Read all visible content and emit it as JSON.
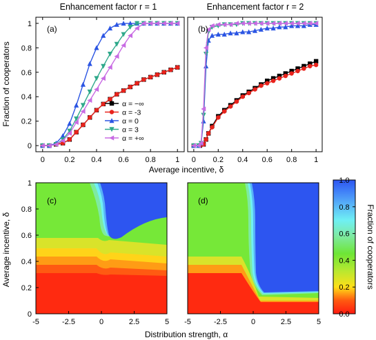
{
  "chart_data": [
    {
      "id": "a",
      "type": "line",
      "panel_label": "(a)",
      "title": "Enhancement factor r = 1",
      "xlabel": "Average incentive, δ",
      "ylabel": "Fraction of cooperators",
      "xlim": [
        -0.05,
        1.05
      ],
      "ylim": [
        -0.05,
        1.05
      ],
      "xticks": [
        "0",
        "0.2",
        "0.4",
        "0.6",
        "0.8",
        "1"
      ],
      "yticks": [
        "0",
        "0.2",
        "0.4",
        "0.6",
        "0.8",
        "1"
      ],
      "legend": {
        "position": "lower-right"
      },
      "series": [
        {
          "name": "α = −∞",
          "color": "#000000",
          "marker": "square",
          "x": [
            0,
            0.05,
            0.1,
            0.15,
            0.2,
            0.25,
            0.3,
            0.35,
            0.4,
            0.45,
            0.5,
            0.55,
            0.6,
            0.65,
            0.7,
            0.75,
            0.8,
            0.85,
            0.9,
            0.95,
            1.0
          ],
          "y": [
            0,
            0,
            0.01,
            0.02,
            0.05,
            0.11,
            0.17,
            0.23,
            0.29,
            0.34,
            0.38,
            0.42,
            0.45,
            0.48,
            0.51,
            0.54,
            0.56,
            0.58,
            0.6,
            0.62,
            0.64
          ]
        },
        {
          "name": "α = -3",
          "color": "#e8231c",
          "marker": "circle",
          "x": [
            0,
            0.05,
            0.1,
            0.15,
            0.2,
            0.25,
            0.3,
            0.35,
            0.4,
            0.45,
            0.5,
            0.55,
            0.6,
            0.65,
            0.7,
            0.75,
            0.8,
            0.85,
            0.9,
            0.95,
            1.0
          ],
          "y": [
            0,
            0,
            0.01,
            0.02,
            0.05,
            0.11,
            0.17,
            0.23,
            0.29,
            0.34,
            0.38,
            0.42,
            0.45,
            0.48,
            0.51,
            0.54,
            0.56,
            0.58,
            0.6,
            0.62,
            0.64
          ]
        },
        {
          "name": "α = 0",
          "color": "#2b55e3",
          "marker": "triangle-up",
          "x": [
            0,
            0.05,
            0.1,
            0.15,
            0.2,
            0.25,
            0.3,
            0.35,
            0.4,
            0.45,
            0.5,
            0.55,
            0.6,
            0.65,
            0.7,
            0.75,
            0.8,
            0.85,
            0.9,
            0.95,
            1.0
          ],
          "y": [
            0,
            0,
            0.02,
            0.08,
            0.18,
            0.33,
            0.5,
            0.67,
            0.8,
            0.9,
            0.96,
            0.99,
            1,
            1,
            1,
            1,
            1,
            1,
            1,
            1,
            1
          ]
        },
        {
          "name": "α = 3",
          "color": "#2fa98b",
          "marker": "triangle-down",
          "x": [
            0,
            0.05,
            0.1,
            0.15,
            0.2,
            0.25,
            0.3,
            0.35,
            0.4,
            0.45,
            0.5,
            0.55,
            0.6,
            0.65,
            0.7,
            0.75,
            0.8,
            0.85,
            0.9,
            0.95,
            1.0
          ],
          "y": [
            0,
            0,
            0.01,
            0.05,
            0.12,
            0.22,
            0.33,
            0.44,
            0.55,
            0.65,
            0.75,
            0.83,
            0.91,
            0.97,
            1,
            1,
            1,
            1,
            1,
            1,
            1
          ]
        },
        {
          "name": "α = +∞",
          "color": "#c86be3",
          "marker": "triangle-left",
          "x": [
            0,
            0.05,
            0.1,
            0.15,
            0.2,
            0.25,
            0.3,
            0.35,
            0.4,
            0.45,
            0.5,
            0.55,
            0.6,
            0.65,
            0.7,
            0.75,
            0.8,
            0.85,
            0.9,
            0.95,
            1.0
          ],
          "y": [
            0,
            0,
            0.01,
            0.04,
            0.1,
            0.19,
            0.28,
            0.37,
            0.46,
            0.55,
            0.64,
            0.73,
            0.82,
            0.9,
            0.96,
            1,
            1,
            1,
            1,
            1,
            1
          ]
        }
      ]
    },
    {
      "id": "b",
      "type": "line",
      "panel_label": "(b)",
      "title": "Enhancement factor r = 2",
      "xlim": [
        -0.05,
        1.05
      ],
      "ylim": [
        -0.05,
        1.05
      ],
      "xticks": [
        "0",
        "0.2",
        "0.4",
        "0.6",
        "0.8",
        "1"
      ],
      "series": [
        {
          "name": "α = −∞",
          "color": "#000000",
          "marker": "square",
          "x": [
            0,
            0.05,
            0.08,
            0.1,
            0.12,
            0.15,
            0.2,
            0.25,
            0.3,
            0.35,
            0.4,
            0.45,
            0.5,
            0.55,
            0.6,
            0.65,
            0.7,
            0.75,
            0.8,
            0.85,
            0.9,
            0.95,
            1.0
          ],
          "y": [
            0,
            0,
            0.01,
            0.05,
            0.1,
            0.16,
            0.24,
            0.29,
            0.33,
            0.37,
            0.41,
            0.44,
            0.47,
            0.5,
            0.53,
            0.55,
            0.57,
            0.59,
            0.61,
            0.63,
            0.65,
            0.67,
            0.69
          ]
        },
        {
          "name": "α = -3",
          "color": "#e8231c",
          "marker": "circle",
          "x": [
            0,
            0.05,
            0.08,
            0.1,
            0.12,
            0.15,
            0.2,
            0.25,
            0.3,
            0.35,
            0.4,
            0.45,
            0.5,
            0.55,
            0.6,
            0.65,
            0.7,
            0.75,
            0.8,
            0.85,
            0.9,
            0.95,
            1.0
          ],
          "y": [
            0,
            0,
            0.01,
            0.05,
            0.1,
            0.15,
            0.23,
            0.28,
            0.32,
            0.36,
            0.4,
            0.43,
            0.46,
            0.49,
            0.51,
            0.53,
            0.55,
            0.57,
            0.59,
            0.61,
            0.63,
            0.65,
            0.66
          ]
        },
        {
          "name": "α = 0",
          "color": "#2b55e3",
          "marker": "triangle-up",
          "x": [
            0,
            0.04,
            0.06,
            0.08,
            0.1,
            0.12,
            0.15,
            0.2,
            0.25,
            0.3,
            0.35,
            0.4,
            0.45,
            0.5,
            0.55,
            0.6,
            0.65,
            0.7,
            0.75,
            0.8,
            0.85,
            0.9,
            0.95,
            1.0
          ],
          "y": [
            0,
            0,
            0.02,
            0.2,
            0.65,
            0.86,
            0.9,
            0.91,
            0.91,
            0.92,
            0.92,
            0.93,
            0.93,
            0.94,
            0.95,
            0.96,
            0.96,
            0.97,
            0.97,
            0.98,
            0.98,
            0.98,
            0.99,
            0.99
          ]
        },
        {
          "name": "α = 3",
          "color": "#2fa98b",
          "marker": "triangle-down",
          "x": [
            0,
            0.04,
            0.06,
            0.08,
            0.1,
            0.12,
            0.15,
            0.2,
            0.25,
            0.3,
            0.35,
            0.4,
            0.45,
            0.5,
            0.55,
            0.6,
            0.65,
            0.7,
            0.75,
            0.8,
            0.85,
            0.9,
            0.95,
            1.0
          ],
          "y": [
            0,
            0,
            0.02,
            0.25,
            0.75,
            0.93,
            0.97,
            0.98,
            0.99,
            0.99,
            0.99,
            1,
            1,
            1,
            1,
            1,
            1,
            1,
            1,
            1,
            1,
            1,
            1,
            1
          ]
        },
        {
          "name": "α = +∞",
          "color": "#c86be3",
          "marker": "triangle-left",
          "x": [
            0,
            0.04,
            0.06,
            0.08,
            0.1,
            0.12,
            0.15,
            0.2,
            0.25,
            0.3,
            0.35,
            0.4,
            0.45,
            0.5,
            0.55,
            0.6,
            0.65,
            0.7,
            0.75,
            0.8,
            0.85,
            0.9,
            0.95,
            1.0
          ],
          "y": [
            0,
            0,
            0.02,
            0.3,
            0.8,
            0.95,
            0.98,
            0.99,
            0.99,
            0.99,
            1,
            1,
            1,
            1,
            1,
            1,
            1,
            1,
            1,
            1,
            1,
            1,
            1,
            1
          ]
        }
      ]
    },
    {
      "id": "c",
      "type": "heatmap",
      "panel_label": "(c)",
      "xlabel": "Distribution strength, α",
      "ylabel": "Average incentive, δ",
      "xlim": [
        -5,
        5
      ],
      "ylim": [
        0,
        1
      ],
      "xticks": [
        "-5",
        "-2.5",
        "0",
        "2.5",
        "5"
      ],
      "yticks": [
        "0",
        "0.2",
        "0.4",
        "0.6",
        "0.8",
        "1"
      ],
      "value_range": [
        0,
        1
      ]
    },
    {
      "id": "d",
      "type": "heatmap",
      "panel_label": "(d)",
      "xlim": [
        -5,
        5
      ],
      "ylim": [
        0,
        1
      ],
      "xticks": [
        "-5",
        "-2.5",
        "0",
        "2.5",
        "5"
      ],
      "value_range": [
        0,
        1
      ],
      "colorbar": {
        "label": "Fraction of cooperators",
        "ticks": [
          "0.0",
          "0.2",
          "0.4",
          "0.6",
          "0.8",
          "1.0"
        ]
      }
    }
  ]
}
